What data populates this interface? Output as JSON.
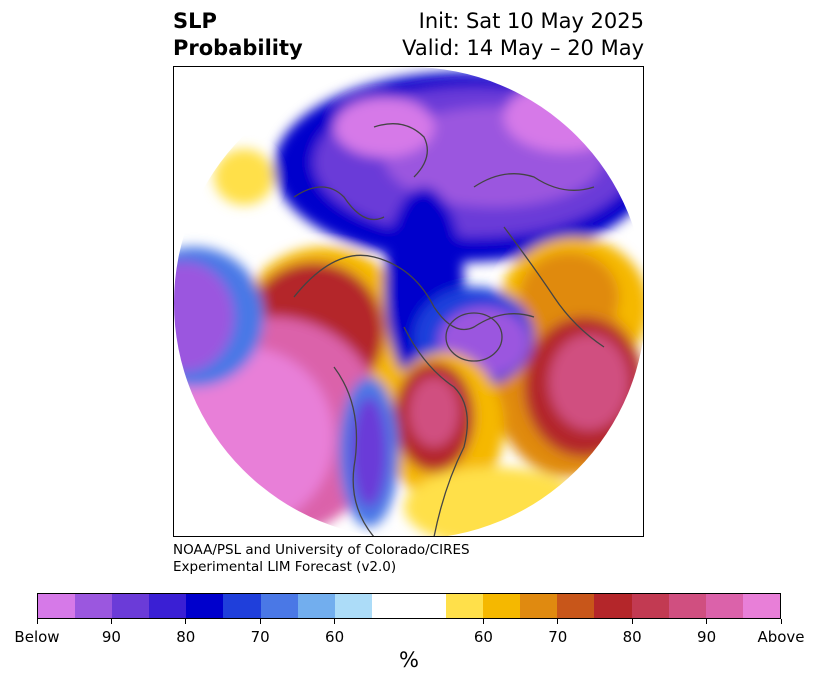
{
  "title": {
    "left_line1": "SLP",
    "left_line2": "Probability",
    "right_line1": "Init: Sat 10 May 2025",
    "right_line2": "Valid: 14 May – 20 May"
  },
  "credit": {
    "line1": "NOAA/PSL and University of Colorado/CIRES",
    "line2": "Experimental LIM Forecast (v2.0)"
  },
  "colorbar": {
    "unit": "%",
    "colors": [
      "#d679e8",
      "#9b57df",
      "#6b3bd8",
      "#3a1fd4",
      "#0000cc",
      "#1f3fdb",
      "#4a78e6",
      "#72aeee",
      "#acdcf8",
      "#ffffff",
      "#ffffff",
      "#ffe04a",
      "#f5b800",
      "#e08a10",
      "#c8561a",
      "#b4262a",
      "#c23a52",
      "#d04f80",
      "#db62aa",
      "#e87fd8"
    ],
    "tick_labels": [
      "Below",
      "90",
      "80",
      "70",
      "60",
      "60",
      "70",
      "80",
      "90",
      "Above"
    ]
  },
  "map": {
    "colors": {
      "below_strong": "#d679e8",
      "below_mid": "#9b57df",
      "below_purple": "#6b3bd8",
      "blue_dark": "#0000cc",
      "blue_mid": "#4a78e6",
      "blue_light": "#acdcf8",
      "yellow": "#ffe04a",
      "gold": "#f5b800",
      "orange": "#e08a10",
      "red": "#b4262a",
      "rose": "#d04f80",
      "above_strong": "#e87fd8",
      "coast": "#444444"
    }
  }
}
